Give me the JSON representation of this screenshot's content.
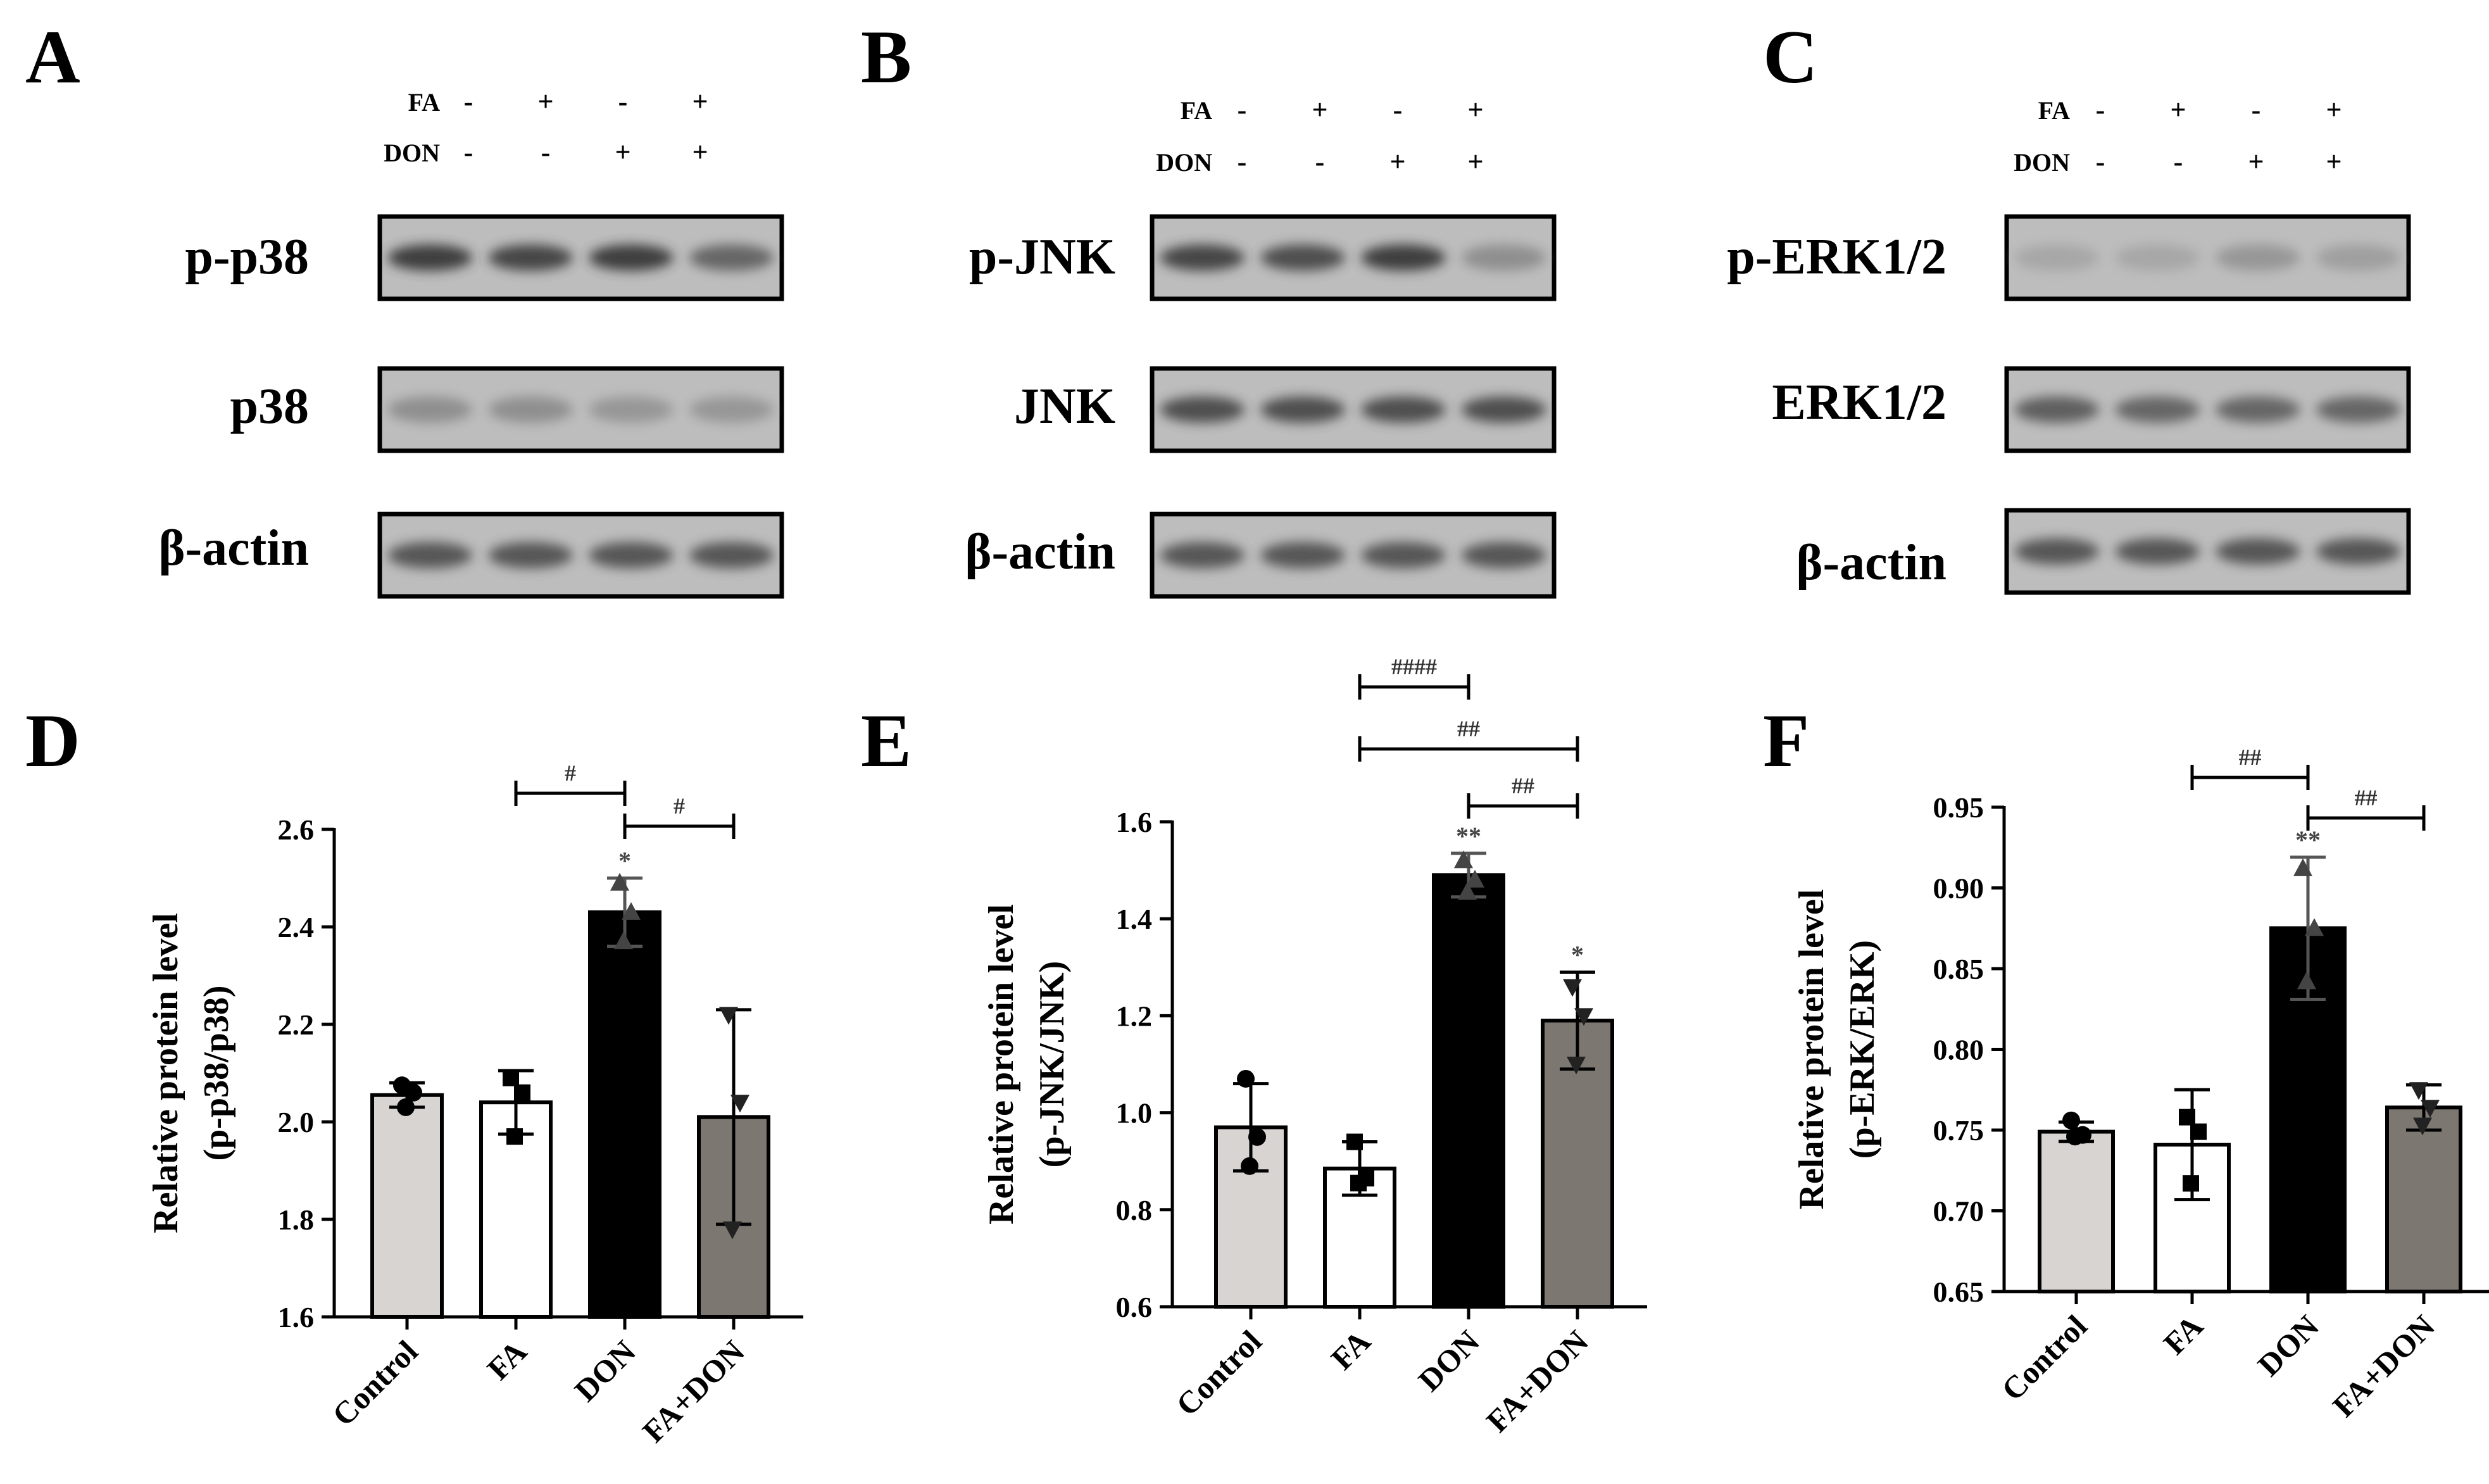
{
  "blot_panels": [
    {
      "letter": "A",
      "rows": [
        {
          "label": "FA",
          "signs": [
            "-",
            "+",
            "-",
            "+"
          ]
        },
        {
          "label": "DON",
          "signs": [
            "-",
            "-",
            "+",
            "+"
          ]
        }
      ],
      "blots": [
        {
          "label": "p-p38",
          "intensity": [
            0.85,
            0.8,
            0.85,
            0.6
          ]
        },
        {
          "label": "p38",
          "intensity": [
            0.35,
            0.35,
            0.3,
            0.3
          ]
        },
        {
          "label": "β-actin",
          "intensity": [
            0.7,
            0.7,
            0.7,
            0.7
          ]
        }
      ]
    },
    {
      "letter": "B",
      "rows": [
        {
          "label": "FA",
          "signs": [
            "-",
            "+",
            "-",
            "+"
          ]
        },
        {
          "label": "DON",
          "signs": [
            "-",
            "-",
            "+",
            "+"
          ]
        }
      ],
      "blots": [
        {
          "label": "p-JNK",
          "intensity": [
            0.8,
            0.75,
            0.85,
            0.35
          ]
        },
        {
          "label": "JNK",
          "intensity": [
            0.75,
            0.75,
            0.75,
            0.75
          ]
        },
        {
          "label": "β-actin",
          "intensity": [
            0.7,
            0.7,
            0.7,
            0.7
          ]
        }
      ]
    },
    {
      "letter": "C",
      "rows": [
        {
          "label": "FA",
          "signs": [
            "-",
            "+",
            "-",
            "+"
          ]
        },
        {
          "label": "DON",
          "signs": [
            "-",
            "-",
            "+",
            "+"
          ]
        }
      ],
      "blots": [
        {
          "label": "p-ERK1/2",
          "intensity": [
            0.2,
            0.2,
            0.3,
            0.25
          ]
        },
        {
          "label": "ERK1/2",
          "intensity": [
            0.65,
            0.6,
            0.6,
            0.6
          ]
        },
        {
          "label": "β-actin",
          "intensity": [
            0.7,
            0.7,
            0.7,
            0.7
          ]
        }
      ]
    }
  ],
  "chart_data": [
    {
      "letter": "D",
      "type": "bar",
      "categories": [
        "Control",
        "FA",
        "DON",
        "FA+DON"
      ],
      "values": [
        2.055,
        2.04,
        2.43,
        2.01
      ],
      "errors": [
        0.025,
        0.065,
        0.07,
        0.22
      ],
      "points": [
        [
          2.075,
          2.06,
          2.03
        ],
        [
          2.09,
          2.06,
          1.97
        ],
        [
          2.49,
          2.43,
          2.37
        ],
        [
          2.22,
          2.04,
          1.78
        ]
      ],
      "marker_colors": [
        "#000000",
        "#000000",
        "#444444",
        "#222222"
      ],
      "bar_colors": [
        "#d8d4d2",
        "#ffffff",
        "#000000",
        "#7d7772"
      ],
      "ylim": [
        1.6,
        2.6
      ],
      "yticks": [
        "1.6",
        "1.8",
        "2.0",
        "2.2",
        "2.4",
        "2.6"
      ],
      "ylabel": [
        "Relative protein level",
        "(p-p38/p38)"
      ],
      "bar_labels": [
        "",
        "",
        "*",
        ""
      ],
      "brackets": [
        {
          "from": 1,
          "to": 2,
          "label": "#"
        },
        {
          "from": 2,
          "to": 3,
          "label": "#"
        }
      ]
    },
    {
      "letter": "E",
      "type": "bar",
      "categories": [
        "Control",
        "FA",
        "DON",
        "FA+DON"
      ],
      "values": [
        0.97,
        0.885,
        1.49,
        1.19
      ],
      "errors": [
        0.09,
        0.055,
        0.045,
        0.1
      ],
      "points": [
        [
          1.07,
          0.95,
          0.89
        ],
        [
          0.94,
          0.865,
          0.855
        ],
        [
          1.52,
          1.48,
          1.455
        ],
        [
          1.26,
          1.2,
          1.1
        ]
      ],
      "marker_colors": [
        "#000000",
        "#000000",
        "#444444",
        "#222222"
      ],
      "bar_colors": [
        "#d8d4d2",
        "#ffffff",
        "#000000",
        "#7d7772"
      ],
      "ylim": [
        0.6,
        1.6
      ],
      "yticks": [
        "0.6",
        "0.8",
        "1.0",
        "1.2",
        "1.4",
        "1.6"
      ],
      "ylabel": [
        "Relative protein level",
        "(p-JNK/JNK)"
      ],
      "bar_labels": [
        "",
        "",
        "**",
        "*"
      ],
      "brackets": [
        {
          "from": 1,
          "to": 2,
          "label": "####"
        },
        {
          "from": 1,
          "to": 3,
          "label": "##"
        },
        {
          "from": 2,
          "to": 3,
          "label": "##"
        }
      ]
    },
    {
      "letter": "F",
      "type": "bar",
      "categories": [
        "Control",
        "FA",
        "DON",
        "FA+DON"
      ],
      "values": [
        0.749,
        0.741,
        0.875,
        0.764
      ],
      "errors": [
        0.006,
        0.034,
        0.044,
        0.014
      ],
      "points": [
        [
          0.756,
          0.747,
          0.746
        ],
        [
          0.758,
          0.749,
          0.717
        ],
        [
          0.912,
          0.875,
          0.842
        ],
        [
          0.775,
          0.764,
          0.753
        ]
      ],
      "marker_colors": [
        "#000000",
        "#000000",
        "#444444",
        "#222222"
      ],
      "bar_colors": [
        "#d8d4d2",
        "#ffffff",
        "#000000",
        "#7d7772"
      ],
      "ylim": [
        0.65,
        0.95
      ],
      "yticks": [
        "0.65",
        "0.70",
        "0.75",
        "0.80",
        "0.85",
        "0.90",
        "0.95"
      ],
      "ylabel": [
        "Relative protein level",
        "(p-ERK/ERK)"
      ],
      "bar_labels": [
        "",
        "",
        "**",
        ""
      ],
      "brackets": [
        {
          "from": 1,
          "to": 2,
          "label": "##"
        },
        {
          "from": 2,
          "to": 3,
          "label": "##"
        }
      ]
    }
  ]
}
